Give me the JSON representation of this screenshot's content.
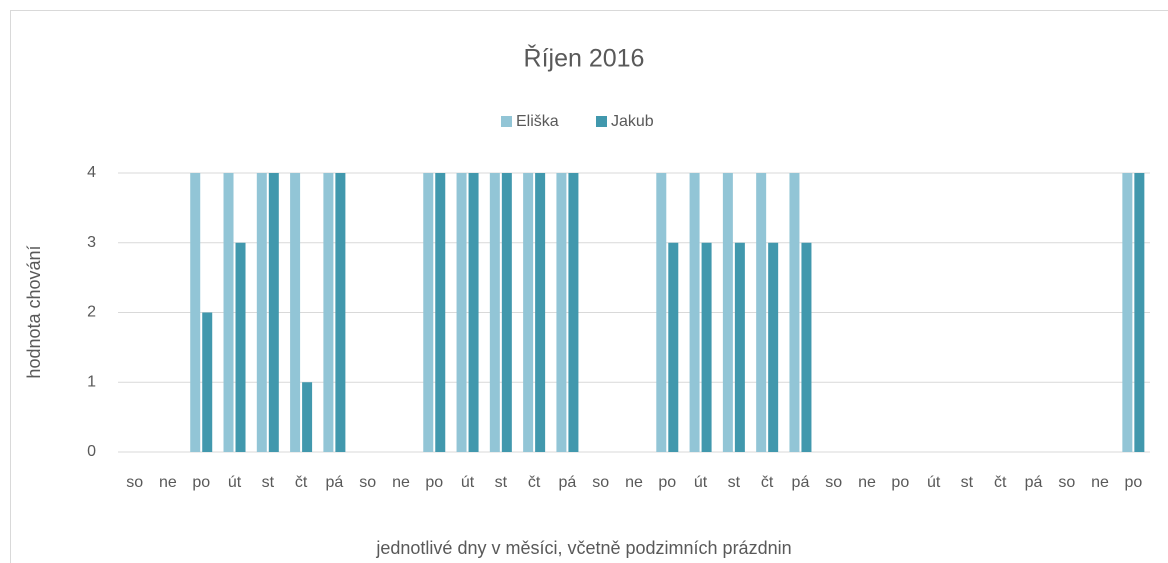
{
  "chart_data": {
    "type": "bar",
    "title": "Říjen 2016",
    "x_label": "jednotlivé dny v měsíci, včetně podzimních prázdnin",
    "y_label": "hodnota chování",
    "categories": [
      "so",
      "ne",
      "po",
      "út",
      "st",
      "čt",
      "pá",
      "so",
      "ne",
      "po",
      "út",
      "st",
      "čt",
      "pá",
      "so",
      "ne",
      "po",
      "út",
      "st",
      "čt",
      "pá",
      "so",
      "ne",
      "po",
      "út",
      "st",
      "čt",
      "pá",
      "so",
      "ne",
      "po"
    ],
    "series": [
      {
        "name": "Eliška",
        "color": "#92c5d6",
        "values": [
          null,
          null,
          4,
          4,
          4,
          4,
          4,
          null,
          null,
          4,
          4,
          4,
          4,
          4,
          null,
          null,
          4,
          4,
          4,
          4,
          4,
          null,
          null,
          null,
          null,
          null,
          null,
          null,
          null,
          null,
          4
        ]
      },
      {
        "name": "Jakub",
        "color": "#4198ad",
        "values": [
          null,
          null,
          2,
          3,
          4,
          1,
          4,
          null,
          null,
          4,
          4,
          4,
          4,
          4,
          null,
          null,
          3,
          3,
          3,
          3,
          3,
          null,
          null,
          null,
          null,
          null,
          null,
          null,
          null,
          null,
          4
        ]
      }
    ],
    "ylim": [
      0,
      4
    ],
    "yticks": [
      0,
      1,
      2,
      3,
      4
    ],
    "grid": true,
    "legend": "top"
  }
}
